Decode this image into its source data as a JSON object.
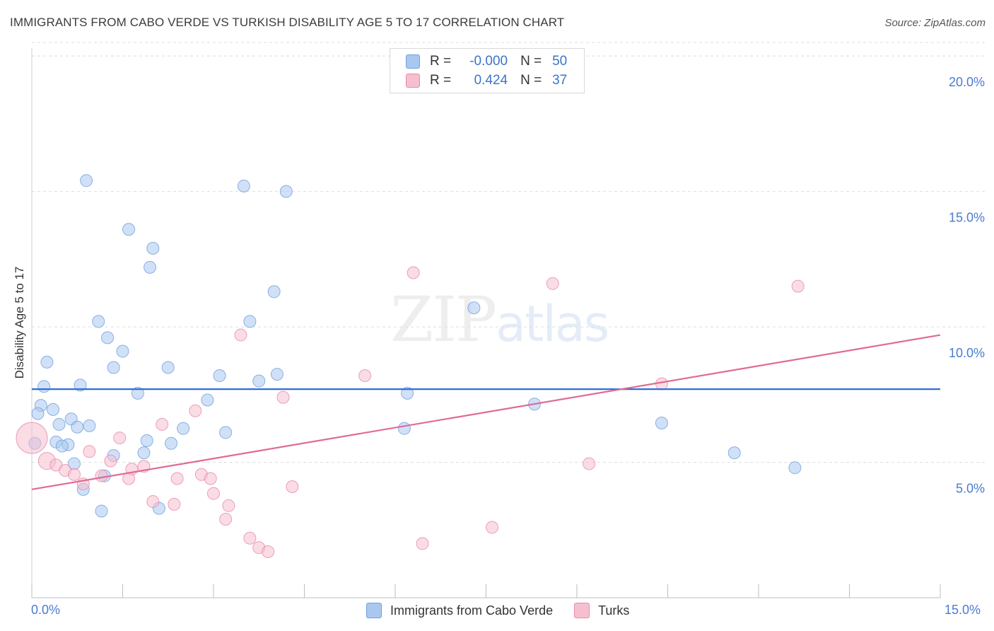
{
  "title": "IMMIGRANTS FROM CABO VERDE VS TURKISH DISABILITY AGE 5 TO 17 CORRELATION CHART",
  "source": "Source: ZipAtlas.com",
  "watermark": {
    "zip": "ZIP",
    "atlas": "atlas"
  },
  "legend": [
    {
      "r_label": "R =",
      "r_value": "-0.000",
      "n_label": "N =",
      "n_value": "50",
      "color": "#a9c8f0",
      "stroke": "#6f9fe0"
    },
    {
      "r_label": "R =",
      "r_value": "0.424",
      "n_label": "N =",
      "n_value": "37",
      "color": "#f6bfd0",
      "stroke": "#e88aa9"
    }
  ],
  "bottom_legend": [
    "Immigrants from Cabo Verde",
    "Turks"
  ],
  "chart_data": {
    "type": "scatter",
    "title": "IMMIGRANTS FROM CABO VERDE VS TURKISH DISABILITY AGE 5 TO 17 CORRELATION CHART",
    "xlabel": "",
    "ylabel": "Disability Age 5 to 17",
    "xlim": [
      0,
      15
    ],
    "ylim": [
      0,
      20.5
    ],
    "x_tick_labels": [
      "0.0%",
      "15.0%"
    ],
    "y_ticks": [
      5,
      10,
      15,
      20
    ],
    "y_tick_labels": [
      "5.0%",
      "10.0%",
      "15.0%",
      "20.0%"
    ],
    "series": [
      {
        "name": "Immigrants from Cabo Verde",
        "color": "#a9c8f0",
        "stroke": "#6f9fe0",
        "line_color": "#2f6fd1",
        "trend": {
          "x0": 0,
          "y0": 7.7,
          "x1": 15,
          "y1": 7.7
        },
        "points": [
          [
            0.9,
            15.4
          ],
          [
            3.5,
            15.2
          ],
          [
            4.2,
            15.0
          ],
          [
            1.6,
            13.6
          ],
          [
            2.0,
            12.9
          ],
          [
            1.95,
            12.2
          ],
          [
            4.0,
            11.3
          ],
          [
            7.3,
            10.7
          ],
          [
            1.1,
            10.2
          ],
          [
            3.6,
            10.2
          ],
          [
            1.25,
            9.6
          ],
          [
            1.5,
            9.1
          ],
          [
            0.25,
            8.7
          ],
          [
            1.35,
            8.5
          ],
          [
            2.25,
            8.5
          ],
          [
            3.1,
            8.2
          ],
          [
            4.05,
            8.25
          ],
          [
            3.75,
            8.0
          ],
          [
            0.2,
            7.8
          ],
          [
            0.8,
            7.85
          ],
          [
            1.75,
            7.55
          ],
          [
            6.2,
            7.55
          ],
          [
            2.9,
            7.3
          ],
          [
            8.3,
            7.15
          ],
          [
            0.15,
            7.1
          ],
          [
            0.35,
            6.95
          ],
          [
            0.1,
            6.8
          ],
          [
            0.65,
            6.6
          ],
          [
            0.45,
            6.4
          ],
          [
            0.75,
            6.3
          ],
          [
            0.95,
            6.35
          ],
          [
            2.5,
            6.25
          ],
          [
            6.15,
            6.25
          ],
          [
            3.2,
            6.1
          ],
          [
            10.4,
            6.45
          ],
          [
            0.05,
            5.7
          ],
          [
            0.4,
            5.75
          ],
          [
            0.6,
            5.65
          ],
          [
            0.5,
            5.6
          ],
          [
            1.9,
            5.8
          ],
          [
            2.3,
            5.7
          ],
          [
            1.85,
            5.35
          ],
          [
            1.35,
            5.25
          ],
          [
            11.6,
            5.35
          ],
          [
            0.7,
            4.95
          ],
          [
            12.6,
            4.8
          ],
          [
            1.2,
            4.5
          ],
          [
            0.85,
            4.0
          ],
          [
            1.15,
            3.2
          ],
          [
            2.1,
            3.3
          ]
        ]
      },
      {
        "name": "Turks",
        "color": "#f6bfd0",
        "stroke": "#e88aa9",
        "line_color": "#e06a96",
        "trend": {
          "x0": 0,
          "y0": 4.0,
          "x1": 15,
          "y1": 9.7
        },
        "points": [
          [
            6.3,
            12.0
          ],
          [
            8.6,
            11.6
          ],
          [
            12.65,
            11.5
          ],
          [
            3.45,
            9.7
          ],
          [
            5.5,
            8.2
          ],
          [
            10.4,
            7.9
          ],
          [
            4.15,
            7.4
          ],
          [
            2.7,
            6.9
          ],
          [
            2.15,
            6.4
          ],
          [
            0.0,
            5.9
          ],
          [
            1.45,
            5.9
          ],
          [
            0.95,
            5.4
          ],
          [
            1.3,
            5.05
          ],
          [
            0.25,
            5.05
          ],
          [
            9.2,
            4.95
          ],
          [
            0.4,
            4.9
          ],
          [
            1.85,
            4.85
          ],
          [
            1.65,
            4.75
          ],
          [
            0.55,
            4.7
          ],
          [
            0.7,
            4.55
          ],
          [
            1.15,
            4.5
          ],
          [
            2.8,
            4.55
          ],
          [
            1.6,
            4.4
          ],
          [
            2.4,
            4.4
          ],
          [
            2.95,
            4.4
          ],
          [
            0.85,
            4.2
          ],
          [
            4.3,
            4.1
          ],
          [
            3.0,
            3.85
          ],
          [
            2.0,
            3.55
          ],
          [
            2.35,
            3.45
          ],
          [
            3.25,
            3.4
          ],
          [
            3.2,
            2.9
          ],
          [
            7.6,
            2.6
          ],
          [
            3.6,
            2.2
          ],
          [
            6.45,
            2.0
          ],
          [
            3.75,
            1.85
          ],
          [
            3.9,
            1.7
          ]
        ]
      }
    ]
  }
}
